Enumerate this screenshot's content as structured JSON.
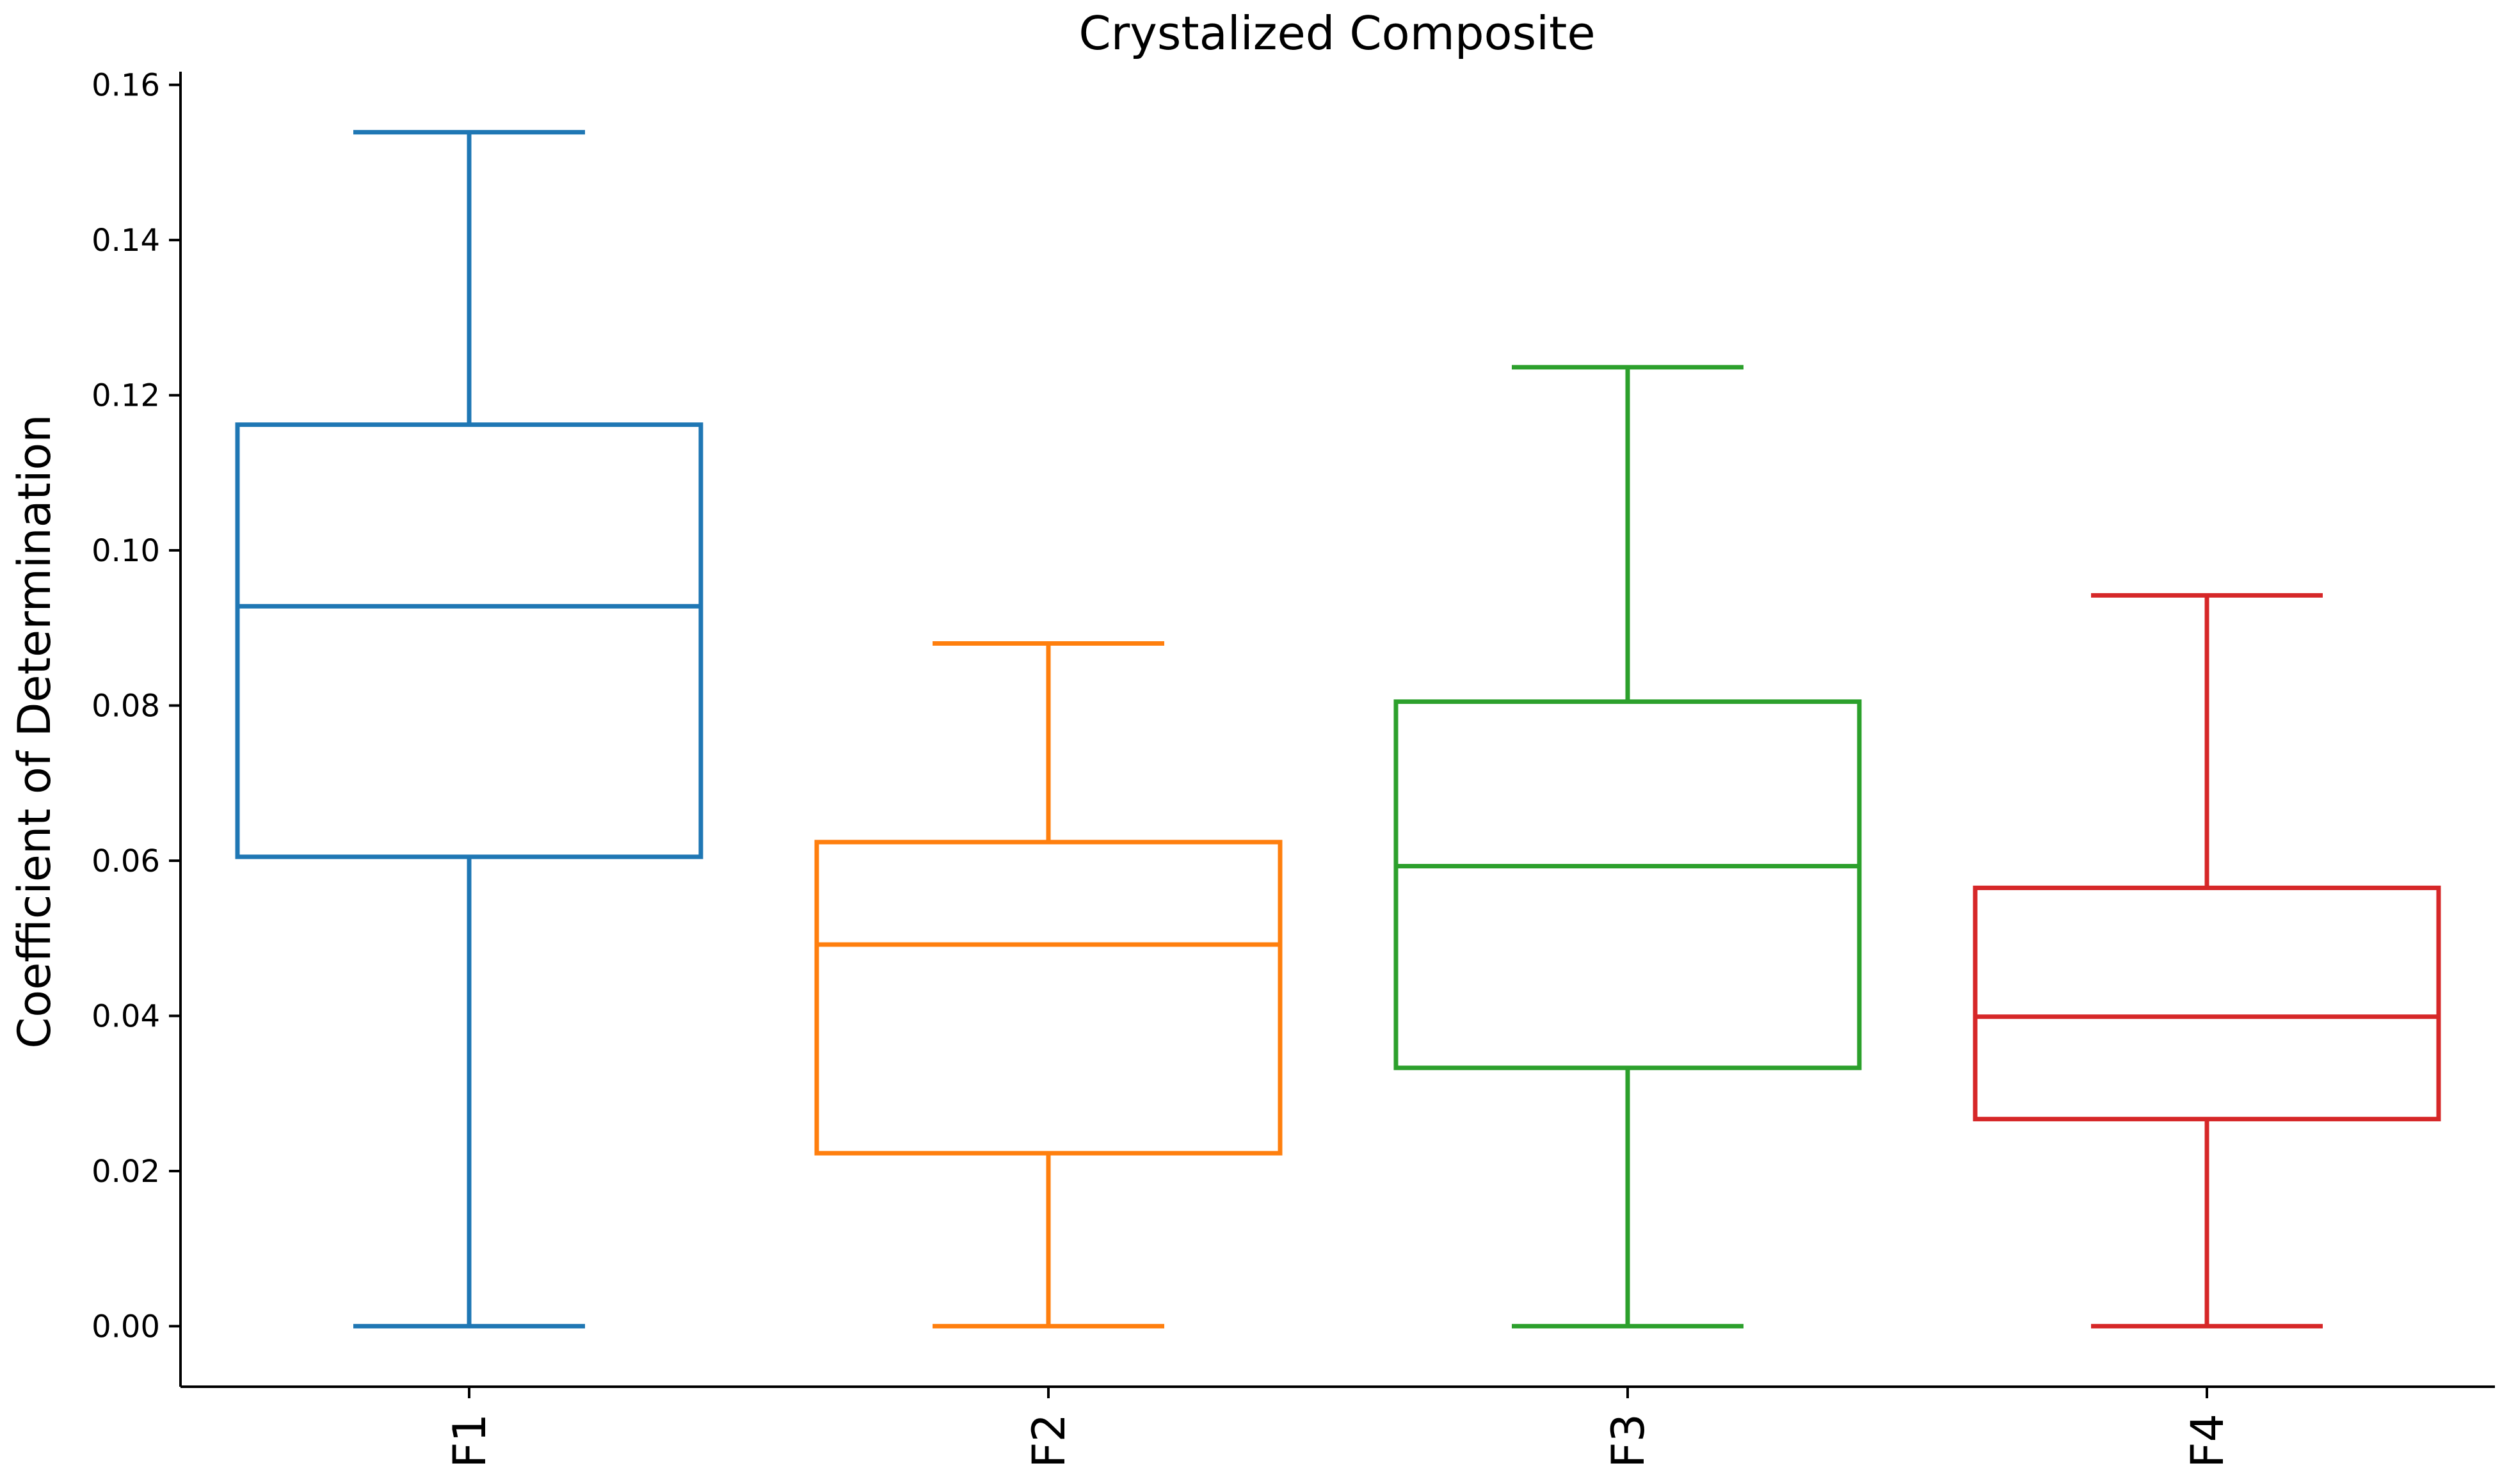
{
  "chart_data": {
    "type": "box",
    "title": "Crystalized Composite",
    "xlabel": "",
    "ylabel": "Coefficient of Determination",
    "ylim": [
      -0.0078,
      0.1617
    ],
    "yticks": [
      "0.00",
      "0.02",
      "0.04",
      "0.06",
      "0.08",
      "0.10",
      "0.12",
      "0.14",
      "0.16"
    ],
    "ytick_values": [
      0.0,
      0.02,
      0.04,
      0.06,
      0.08,
      0.1,
      0.12,
      0.14,
      0.16
    ],
    "grid": false,
    "categories": [
      "F1",
      "F2",
      "F3",
      "F4"
    ],
    "boxes": [
      {
        "category": "F1",
        "color": "#1f77b4",
        "whisker_low": 0.0,
        "q1": 0.0605,
        "median": 0.0928,
        "q3": 0.1162,
        "whisker_high": 0.1539
      },
      {
        "category": "F2",
        "color": "#ff7f0e",
        "whisker_low": 0.0,
        "q1": 0.0223,
        "median": 0.0492,
        "q3": 0.0624,
        "whisker_high": 0.088
      },
      {
        "category": "F3",
        "color": "#2ca02c",
        "whisker_low": 0.0,
        "q1": 0.0333,
        "median": 0.0593,
        "q3": 0.0805,
        "whisker_high": 0.1236
      },
      {
        "category": "F4",
        "color": "#d62728",
        "whisker_low": 0.0,
        "q1": 0.0267,
        "median": 0.0399,
        "q3": 0.0565,
        "whisker_high": 0.0942
      }
    ]
  }
}
